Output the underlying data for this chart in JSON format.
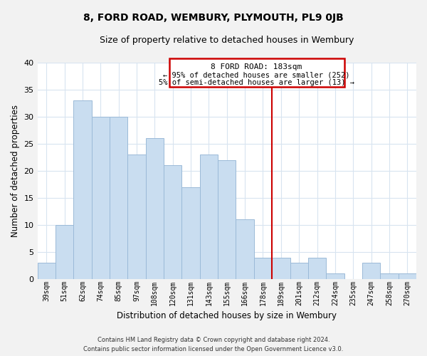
{
  "title": "8, FORD ROAD, WEMBURY, PLYMOUTH, PL9 0JB",
  "subtitle": "Size of property relative to detached houses in Wembury",
  "xlabel": "Distribution of detached houses by size in Wembury",
  "ylabel": "Number of detached properties",
  "bar_labels": [
    "39sqm",
    "51sqm",
    "62sqm",
    "74sqm",
    "85sqm",
    "97sqm",
    "108sqm",
    "120sqm",
    "131sqm",
    "143sqm",
    "155sqm",
    "166sqm",
    "178sqm",
    "189sqm",
    "201sqm",
    "212sqm",
    "224sqm",
    "235sqm",
    "247sqm",
    "258sqm",
    "270sqm"
  ],
  "bar_values": [
    3,
    10,
    33,
    30,
    30,
    23,
    26,
    21,
    17,
    23,
    22,
    11,
    4,
    4,
    3,
    4,
    1,
    0,
    3,
    1,
    1
  ],
  "bar_color": "#c9ddf0",
  "bar_edge_color": "#9bbad8",
  "vline_x_index": 12.5,
  "vline_color": "#cc0000",
  "ylim": [
    0,
    40
  ],
  "yticks": [
    0,
    5,
    10,
    15,
    20,
    25,
    30,
    35,
    40
  ],
  "annotation_title": "8 FORD ROAD: 183sqm",
  "annotation_line1": "← 95% of detached houses are smaller (252)",
  "annotation_line2": "5% of semi-detached houses are larger (13) →",
  "footnote1": "Contains HM Land Registry data © Crown copyright and database right 2024.",
  "footnote2": "Contains public sector information licensed under the Open Government Licence v3.0.",
  "bg_color": "#f2f2f2",
  "plot_bg_color": "#ffffff",
  "grid_color": "#d8e4f0"
}
